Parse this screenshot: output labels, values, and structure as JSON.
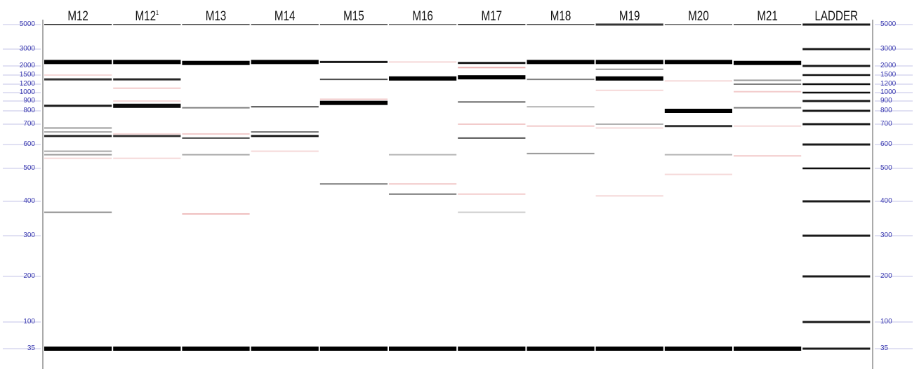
{
  "lanes": [
    {
      "label": "M12",
      "sup": ""
    },
    {
      "label": "M12",
      "sup": "1"
    },
    {
      "label": "M13",
      "sup": ""
    },
    {
      "label": "M14",
      "sup": ""
    },
    {
      "label": "M15",
      "sup": ""
    },
    {
      "label": "M16",
      "sup": ""
    },
    {
      "label": "M17",
      "sup": ""
    },
    {
      "label": "M18",
      "sup": ""
    },
    {
      "label": "M19",
      "sup": ""
    },
    {
      "label": "M20",
      "sup": ""
    },
    {
      "label": "M21",
      "sup": ""
    },
    {
      "label": "LADDER",
      "sup": ""
    }
  ],
  "marker_labels": [
    "5000",
    "3000",
    "2000",
    "1500",
    "1200",
    "1000",
    "900",
    "800",
    "700",
    "600",
    "500",
    "400",
    "300",
    "200",
    "100",
    "35"
  ],
  "ladder_bp": [
    5000,
    3000,
    2000,
    1500,
    1200,
    1000,
    900,
    800,
    700,
    600,
    500,
    400,
    300,
    200,
    100,
    35
  ],
  "bands": [
    [
      {
        "bp": 5000,
        "i": 0.7
      },
      {
        "bp": 2200,
        "i": 1
      },
      {
        "bp": 1500,
        "i": 0.15,
        "c": "pink"
      },
      {
        "bp": 1350,
        "i": 0.8
      },
      {
        "bp": 850,
        "i": 0.9
      },
      {
        "bp": 680,
        "i": 0.4
      },
      {
        "bp": 660,
        "i": 0.35
      },
      {
        "bp": 640,
        "i": 0.85
      },
      {
        "bp": 570,
        "i": 0.35
      },
      {
        "bp": 555,
        "i": 0.4
      },
      {
        "bp": 540,
        "i": 0.15,
        "c": "pink"
      },
      {
        "bp": 365,
        "i": 0.45
      },
      {
        "bp": 35,
        "i": 1
      }
    ],
    [
      {
        "bp": 5000,
        "i": 0.6
      },
      {
        "bp": 2200,
        "i": 1
      },
      {
        "bp": 1350,
        "i": 0.85
      },
      {
        "bp": 1100,
        "i": 0.2,
        "c": "pink"
      },
      {
        "bp": 900,
        "i": 0.15,
        "c": "pink"
      },
      {
        "bp": 850,
        "i": 0.95
      },
      {
        "bp": 650,
        "i": 0.15,
        "c": "pink"
      },
      {
        "bp": 640,
        "i": 0.8
      },
      {
        "bp": 540,
        "i": 0.15,
        "c": "pink"
      },
      {
        "bp": 35,
        "i": 1
      }
    ],
    [
      {
        "bp": 5000,
        "i": 0.6
      },
      {
        "bp": 2150,
        "i": 1
      },
      {
        "bp": 830,
        "i": 0.5
      },
      {
        "bp": 650,
        "i": 0.2,
        "c": "pink"
      },
      {
        "bp": 630,
        "i": 0.75
      },
      {
        "bp": 555,
        "i": 0.35
      },
      {
        "bp": 360,
        "i": 0.25,
        "c": "pink"
      },
      {
        "bp": 35,
        "i": 1
      }
    ],
    [
      {
        "bp": 5000,
        "i": 0.6
      },
      {
        "bp": 2200,
        "i": 1
      },
      {
        "bp": 840,
        "i": 0.7
      },
      {
        "bp": 660,
        "i": 0.55
      },
      {
        "bp": 640,
        "i": 0.9
      },
      {
        "bp": 570,
        "i": 0.15,
        "c": "pink"
      },
      {
        "bp": 35,
        "i": 1
      }
    ],
    [
      {
        "bp": 5000,
        "i": 0.6
      },
      {
        "bp": 2200,
        "i": 0.9
      },
      {
        "bp": 1350,
        "i": 0.7
      },
      {
        "bp": 920,
        "i": 0.2,
        "c": "pink"
      },
      {
        "bp": 880,
        "i": 1
      },
      {
        "bp": 450,
        "i": 0.5
      },
      {
        "bp": 35,
        "i": 1
      }
    ],
    [
      {
        "bp": 5000,
        "i": 0.5
      },
      {
        "bp": 2200,
        "i": 0.15,
        "c": "pink"
      },
      {
        "bp": 1380,
        "i": 1
      },
      {
        "bp": 555,
        "i": 0.3
      },
      {
        "bp": 450,
        "i": 0.2,
        "c": "pink"
      },
      {
        "bp": 420,
        "i": 0.55
      },
      {
        "bp": 35,
        "i": 1
      }
    ],
    [
      {
        "bp": 5000,
        "i": 0.7
      },
      {
        "bp": 2150,
        "i": 0.9
      },
      {
        "bp": 1900,
        "i": 0.3,
        "c": "pink"
      },
      {
        "bp": 1420,
        "i": 1
      },
      {
        "bp": 890,
        "i": 0.6
      },
      {
        "bp": 700,
        "i": 0.2,
        "c": "pink"
      },
      {
        "bp": 630,
        "i": 0.7
      },
      {
        "bp": 420,
        "i": 0.2,
        "c": "pink"
      },
      {
        "bp": 365,
        "i": 0.2
      },
      {
        "bp": 35,
        "i": 1
      }
    ],
    [
      {
        "bp": 5000,
        "i": 0.6
      },
      {
        "bp": 2200,
        "i": 1
      },
      {
        "bp": 1350,
        "i": 0.5
      },
      {
        "bp": 840,
        "i": 0.3
      },
      {
        "bp": 690,
        "i": 0.2,
        "c": "pink"
      },
      {
        "bp": 560,
        "i": 0.4
      },
      {
        "bp": 35,
        "i": 1
      }
    ],
    [
      {
        "bp": 5000,
        "i": 0.8
      },
      {
        "bp": 2200,
        "i": 1
      },
      {
        "bp": 1800,
        "i": 0.4
      },
      {
        "bp": 1380,
        "i": 1
      },
      {
        "bp": 1050,
        "i": 0.15,
        "c": "pink"
      },
      {
        "bp": 700,
        "i": 0.3
      },
      {
        "bp": 680,
        "i": 0.15,
        "c": "pink"
      },
      {
        "bp": 415,
        "i": 0.15,
        "c": "pink"
      },
      {
        "bp": 35,
        "i": 1
      }
    ],
    [
      {
        "bp": 5000,
        "i": 0.5
      },
      {
        "bp": 2200,
        "i": 1
      },
      {
        "bp": 1300,
        "i": 0.15,
        "c": "pink"
      },
      {
        "bp": 800,
        "i": 1
      },
      {
        "bp": 690,
        "i": 0.8
      },
      {
        "bp": 555,
        "i": 0.3
      },
      {
        "bp": 480,
        "i": 0.15,
        "c": "pink"
      },
      {
        "bp": 35,
        "i": 1
      }
    ],
    [
      {
        "bp": 5000,
        "i": 0.6
      },
      {
        "bp": 2150,
        "i": 1
      },
      {
        "bp": 1320,
        "i": 0.4
      },
      {
        "bp": 1200,
        "i": 0.5
      },
      {
        "bp": 1020,
        "i": 0.2,
        "c": "pink"
      },
      {
        "bp": 830,
        "i": 0.5
      },
      {
        "bp": 690,
        "i": 0.15,
        "c": "pink"
      },
      {
        "bp": 550,
        "i": 0.2,
        "c": "pink"
      },
      {
        "bp": 35,
        "i": 1
      }
    ],
    [
      {
        "bp": 5000,
        "i": 0.9
      },
      {
        "bp": 3000,
        "i": 0.9
      },
      {
        "bp": 2000,
        "i": 0.9
      },
      {
        "bp": 1500,
        "i": 0.95
      },
      {
        "bp": 1200,
        "i": 0.95
      },
      {
        "bp": 1000,
        "i": 0.95
      },
      {
        "bp": 900,
        "i": 0.9
      },
      {
        "bp": 800,
        "i": 0.9
      },
      {
        "bp": 700,
        "i": 0.9
      },
      {
        "bp": 600,
        "i": 0.9
      },
      {
        "bp": 500,
        "i": 0.95
      },
      {
        "bp": 400,
        "i": 0.9
      },
      {
        "bp": 300,
        "i": 0.9
      },
      {
        "bp": 200,
        "i": 0.9
      },
      {
        "bp": 100,
        "i": 0.9
      },
      {
        "bp": 35,
        "i": 0.9
      }
    ]
  ],
  "colors": {
    "band": "#000000",
    "pink": "#e9a8a8",
    "marker": "#3a3ab0",
    "divider": "#dddddd"
  }
}
